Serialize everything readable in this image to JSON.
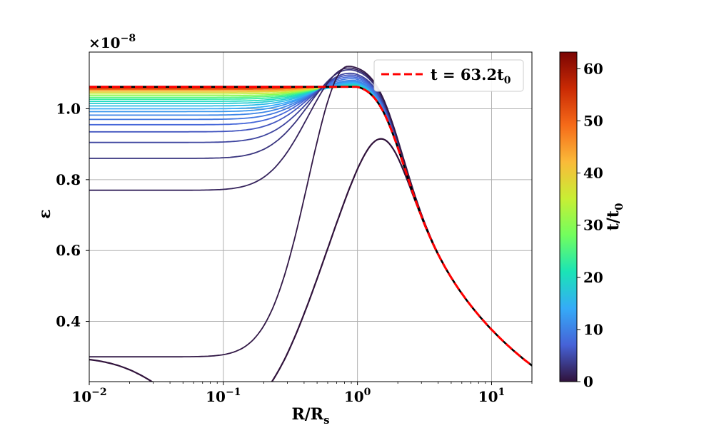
{
  "chart_data": {
    "type": "line",
    "title": "",
    "xlabel": "R/R",
    "xlabel_sub": "s",
    "ylabel": "ε",
    "y_scale_label": "×10",
    "y_scale_exp": "−8",
    "xscale": "log",
    "xlim": [
      0.01,
      20
    ],
    "ylim": [
      0.23,
      1.16
    ],
    "grid": true,
    "x_ticks": [
      {
        "value": 0.01,
        "base": "10",
        "exp": "−2"
      },
      {
        "value": 0.1,
        "base": "10",
        "exp": "−1"
      },
      {
        "value": 1,
        "base": "10",
        "exp": "0"
      },
      {
        "value": 10,
        "base": "10",
        "exp": "1"
      }
    ],
    "y_ticks": [
      {
        "value": 0.4,
        "label": "0.4"
      },
      {
        "value": 0.6,
        "label": "0.6"
      },
      {
        "value": 0.8,
        "label": "0.8"
      },
      {
        "value": 1.0,
        "label": "1.0"
      }
    ],
    "colorbar": {
      "label": "t/t",
      "label_sub": "0",
      "range": [
        0,
        63.2
      ],
      "colormap": [
        "#30123b",
        "#4662d7",
        "#35abf8",
        "#1ae4b6",
        "#72fe5e",
        "#c8ef34",
        "#faba39",
        "#f66b19",
        "#ca2a04",
        "#7a0403"
      ],
      "ticks": [
        {
          "value": 0,
          "label": "0"
        },
        {
          "value": 10,
          "label": "10"
        },
        {
          "value": 20,
          "label": "20"
        },
        {
          "value": 30,
          "label": "30"
        },
        {
          "value": 40,
          "label": "40"
        },
        {
          "value": 50,
          "label": "50"
        },
        {
          "value": 60,
          "label": "60"
        }
      ]
    },
    "series_model": {
      "note": "profiles at successive times; each defined by inner plateau, peak amplitude and peak radius",
      "outer_power_law": {
        "r0": 1.0,
        "value_at_r0": 1.06,
        "slope": -0.45
      },
      "series": [
        {
          "t": 0.0,
          "inner": 0.3,
          "peak": 1.12,
          "rpeak": 0.85,
          "initial": true
        },
        {
          "t": 0.5,
          "inner": 0.3,
          "peak": 1.12,
          "rpeak": 0.85
        },
        {
          "t": 1.5,
          "inner": 0.77,
          "peak": 1.115,
          "rpeak": 0.85
        },
        {
          "t": 3.0,
          "inner": 0.86,
          "peak": 1.11,
          "rpeak": 0.86
        },
        {
          "t": 4.5,
          "inner": 0.905,
          "peak": 1.1,
          "rpeak": 0.87
        },
        {
          "t": 6.0,
          "inner": 0.935,
          "peak": 1.095,
          "rpeak": 0.88
        },
        {
          "t": 7.5,
          "inner": 0.955,
          "peak": 1.09,
          "rpeak": 0.89
        },
        {
          "t": 9.0,
          "inner": 0.97,
          "peak": 1.085,
          "rpeak": 0.9
        },
        {
          "t": 10.5,
          "inner": 0.982,
          "peak": 1.08,
          "rpeak": 0.91
        },
        {
          "t": 12.0,
          "inner": 0.992,
          "peak": 1.077,
          "rpeak": 0.92
        },
        {
          "t": 14.0,
          "inner": 1.0,
          "peak": 1.074,
          "rpeak": 0.93
        },
        {
          "t": 16.0,
          "inner": 1.008,
          "peak": 1.072,
          "rpeak": 0.94
        },
        {
          "t": 18.0,
          "inner": 1.015,
          "peak": 1.07,
          "rpeak": 0.95
        },
        {
          "t": 20.0,
          "inner": 1.021,
          "peak": 1.068,
          "rpeak": 0.95
        },
        {
          "t": 23.0,
          "inner": 1.027,
          "peak": 1.066,
          "rpeak": 0.96
        },
        {
          "t": 26.0,
          "inner": 1.032,
          "peak": 1.065,
          "rpeak": 0.96
        },
        {
          "t": 30.0,
          "inner": 1.037,
          "peak": 1.064,
          "rpeak": 0.97
        },
        {
          "t": 34.0,
          "inner": 1.042,
          "peak": 1.063,
          "rpeak": 0.97
        },
        {
          "t": 39.0,
          "inner": 1.047,
          "peak": 1.062,
          "rpeak": 0.98
        },
        {
          "t": 44.0,
          "inner": 1.051,
          "peak": 1.062,
          "rpeak": 0.98
        },
        {
          "t": 50.0,
          "inner": 1.055,
          "peak": 1.062,
          "rpeak": 0.99
        },
        {
          "t": 56.0,
          "inner": 1.058,
          "peak": 1.062,
          "rpeak": 0.99
        },
        {
          "t": 63.2,
          "inner": 1.061,
          "peak": 1.062,
          "rpeak": 1.0
        }
      ],
      "final": {
        "t": 63.2,
        "inner": 1.062,
        "peak": 1.062,
        "rpeak": 1.0,
        "style": "dashed",
        "color": "#ff0000"
      }
    },
    "legend": {
      "position": "top-right",
      "entries": [
        {
          "label_prefix": "t = 63.2t",
          "label_sub": "0",
          "color": "#ff0000",
          "style": "dashed"
        }
      ]
    }
  }
}
